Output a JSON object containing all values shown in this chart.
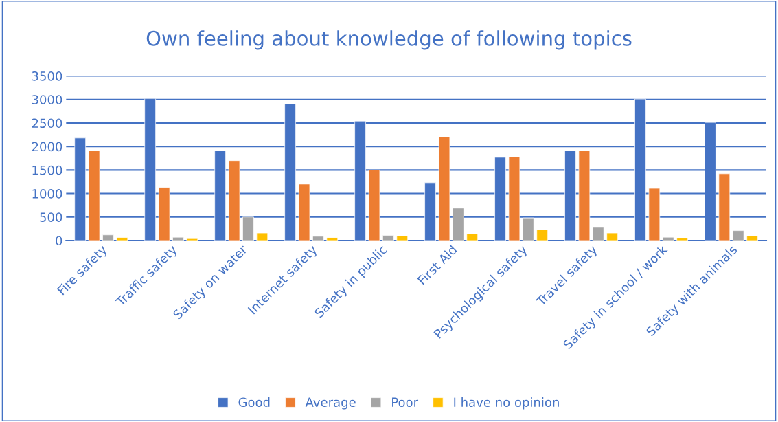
{
  "chart_data": {
    "type": "bar",
    "title": "Own feeling about knowledge of following topics",
    "categories": [
      "Fire safety",
      "Traffic safety",
      "Safety on water",
      "Internet safety",
      "Safety in public",
      "First Aid",
      "Psychological safety",
      "Travel safety",
      "Safety in school / work",
      "Safety with animals"
    ],
    "series": [
      {
        "name": "Good",
        "color": "#4472c4",
        "values": [
          2180,
          3020,
          1910,
          2910,
          2540,
          1230,
          1770,
          1910,
          3010,
          2510
        ]
      },
      {
        "name": "Average",
        "color": "#ed7d31",
        "values": [
          1910,
          1130,
          1700,
          1200,
          1500,
          2200,
          1780,
          1910,
          1110,
          1420
        ]
      },
      {
        "name": "Poor",
        "color": "#a5a5a5",
        "values": [
          120,
          70,
          500,
          90,
          110,
          690,
          480,
          280,
          70,
          210
        ]
      },
      {
        "name": "I have no opinion",
        "color": "#ffc000",
        "values": [
          60,
          40,
          160,
          60,
          100,
          140,
          230,
          160,
          50,
          100
        ]
      }
    ],
    "ylim": [
      0,
      3500
    ],
    "yticks": [
      0,
      500,
      1000,
      1500,
      2000,
      2500,
      3000,
      3500
    ],
    "grid": "y",
    "legend": "bottom"
  }
}
